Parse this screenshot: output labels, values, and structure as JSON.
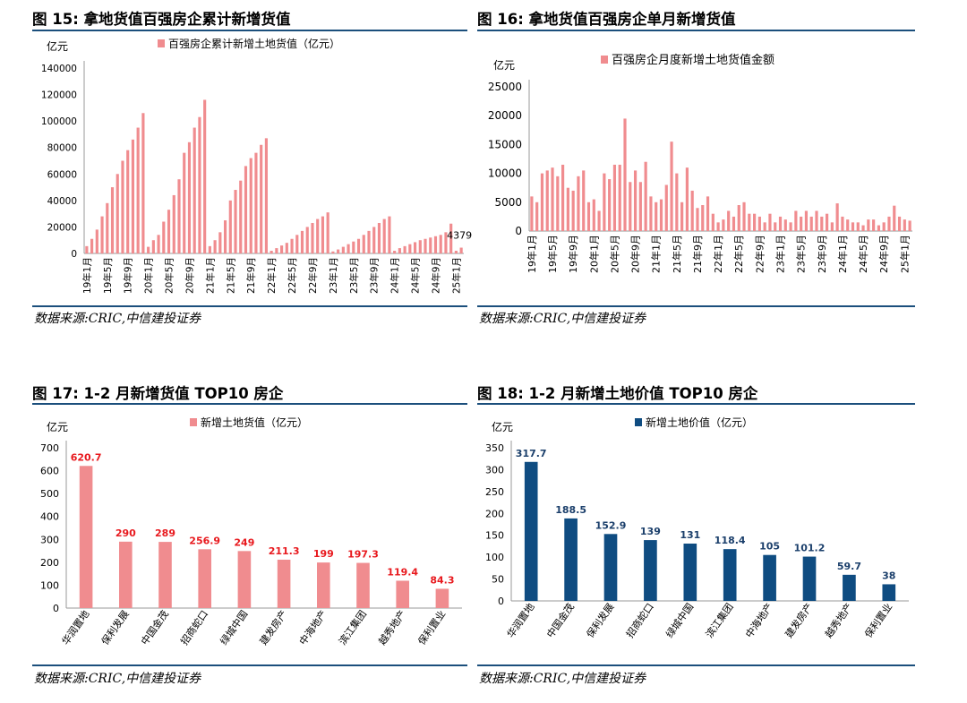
{
  "panels": [
    {
      "title": "图 15:  拿地货值百强房企累计新增货值",
      "source": "数据来源:CRIC,中信建投证券",
      "chart_data": {
        "type": "bar",
        "unit_label": "亿元",
        "legend": "百强房企累计新增土地货值（亿元）",
        "ylim": [
          0,
          140000
        ],
        "yticks": [
          0,
          20000,
          40000,
          60000,
          80000,
          100000,
          120000,
          140000
        ],
        "color": "#f08c8f",
        "categories": [
          "19年1月",
          "19年2月",
          "19年3月",
          "19年4月",
          "19年5月",
          "19年6月",
          "19年7月",
          "19年8月",
          "19年9月",
          "19年10月",
          "19年11月",
          "19年12月",
          "20年1月",
          "20年2月",
          "20年3月",
          "20年4月",
          "20年5月",
          "20年6月",
          "20年7月",
          "20年8月",
          "20年9月",
          "20年10月",
          "20年11月",
          "20年12月",
          "21年1月",
          "21年2月",
          "21年3月",
          "21年4月",
          "21年5月",
          "21年6月",
          "21年7月",
          "21年8月",
          "21年9月",
          "21年10月",
          "21年11月",
          "21年12月",
          "22年1月",
          "22年2月",
          "22年3月",
          "22年4月",
          "22年5月",
          "22年6月",
          "22年7月",
          "22年8月",
          "22年9月",
          "22年10月",
          "22年11月",
          "22年12月",
          "23年1月",
          "23年2月",
          "23年3月",
          "23年4月",
          "23年5月",
          "23年6月",
          "23年7月",
          "23年8月",
          "23年9月",
          "23年10月",
          "23年11月",
          "23年12月",
          "24年1月",
          "24年2月",
          "24年3月",
          "24年4月",
          "24年5月",
          "24年6月",
          "24年7月",
          "24年8月",
          "24年9月",
          "24年10月",
          "24年11月",
          "24年12月",
          "25年1月",
          "25年2月"
        ],
        "xtick_labels": [
          "19年1月",
          "19年5月",
          "19年9月",
          "20年1月",
          "20年5月",
          "20年9月",
          "21年1月",
          "21年5月",
          "21年9月",
          "22年1月",
          "22年5月",
          "22年9月",
          "23年1月",
          "23年5月",
          "23年9月",
          "24年1月",
          "24年5月",
          "24年9月",
          "25年1月"
        ],
        "values": [
          5500,
          11000,
          18000,
          28000,
          38000,
          50000,
          60000,
          70000,
          78000,
          86000,
          95000,
          106000,
          5000,
          10000,
          14000,
          24000,
          33000,
          44000,
          56000,
          76000,
          84000,
          95000,
          103000,
          116000,
          5500,
          10000,
          16000,
          25000,
          40000,
          48000,
          55000,
          66000,
          72000,
          76000,
          82000,
          87000,
          2000,
          4000,
          6000,
          8000,
          11000,
          14000,
          17000,
          20000,
          23000,
          26000,
          28000,
          31000,
          1500,
          3000,
          5000,
          7000,
          9000,
          11000,
          14000,
          17000,
          20000,
          23000,
          26000,
          28000,
          2000,
          4000,
          5500,
          7000,
          8500,
          10000,
          11000,
          12000,
          13000,
          14000,
          16000,
          22500,
          2000,
          4379
        ],
        "annotation": {
          "category_index": 73,
          "text": "4379"
        }
      }
    },
    {
      "title": "图 16:  拿地货值百强房企单月新增货值",
      "source": "数据来源:CRIC,中信建投证券",
      "chart_data": {
        "type": "bar",
        "unit_label": "亿元",
        "legend": "百强房企月度新增土地货值金额",
        "ylim": [
          0,
          25000
        ],
        "yticks": [
          0,
          5000,
          10000,
          15000,
          20000,
          25000
        ],
        "color": "#f08c8f",
        "categories": [
          "19年1月",
          "19年2月",
          "19年3月",
          "19年4月",
          "19年5月",
          "19年6月",
          "19年7月",
          "19年8月",
          "19年9月",
          "19年10月",
          "19年11月",
          "19年12月",
          "20年1月",
          "20年2月",
          "20年3月",
          "20年4月",
          "20年5月",
          "20年6月",
          "20年7月",
          "20年8月",
          "20年9月",
          "20年10月",
          "20年11月",
          "20年12月",
          "21年1月",
          "21年2月",
          "21年3月",
          "21年4月",
          "21年5月",
          "21年6月",
          "21年7月",
          "21年8月",
          "21年9月",
          "21年10月",
          "21年11月",
          "21年12月",
          "22年1月",
          "22年2月",
          "22年3月",
          "22年4月",
          "22年5月",
          "22年6月",
          "22年7月",
          "22年8月",
          "22年9月",
          "22年10月",
          "22年11月",
          "22年12月",
          "23年1月",
          "23年2月",
          "23年3月",
          "23年4月",
          "23年5月",
          "23年6月",
          "23年7月",
          "23年8月",
          "23年9月",
          "23年10月",
          "23年11月",
          "23年12月",
          "24年1月",
          "24年2月",
          "24年3月",
          "24年4月",
          "24年5月",
          "24年6月",
          "24年7月",
          "24年8月",
          "24年9月",
          "24年10月",
          "24年11月",
          "24年12月",
          "25年1月",
          "25年2月"
        ],
        "xtick_labels": [
          "19年1月",
          "19年5月",
          "19年9月",
          "20年1月",
          "20年5月",
          "20年9月",
          "21年1月",
          "21年5月",
          "21年9月",
          "22年1月",
          "22年5月",
          "22年9月",
          "23年1月",
          "23年5月",
          "23年9月",
          "24年1月",
          "24年5月",
          "24年9月",
          "25年1月"
        ],
        "values": [
          6000,
          5000,
          10000,
          10500,
          11000,
          9500,
          11500,
          7500,
          7000,
          9500,
          10500,
          5000,
          5500,
          3500,
          10000,
          9000,
          11500,
          11500,
          19500,
          8500,
          10500,
          8500,
          12000,
          6000,
          5000,
          5500,
          8000,
          15500,
          10000,
          5000,
          11000,
          7000,
          4000,
          4500,
          6000,
          3000,
          1500,
          2000,
          3500,
          2500,
          4500,
          5000,
          3000,
          3000,
          2500,
          1500,
          3000,
          1500,
          2500,
          2000,
          1500,
          3500,
          2500,
          3500,
          2500,
          3500,
          2500,
          3000,
          1500,
          4800,
          2500,
          2000,
          1500,
          1500,
          1000,
          2000,
          2000,
          1000,
          1500,
          2500,
          4400,
          2500,
          2000,
          1800
        ]
      }
    },
    {
      "title": "图 17:  1-2 月新增货值 TOP10 房企",
      "source": "数据来源:CRIC,中信建投证券",
      "chart_data": {
        "type": "bar",
        "unit_label": "亿元",
        "legend": "新增土地货值（亿元）",
        "ylim": [
          0,
          700
        ],
        "yticks": [
          0,
          100,
          200,
          300,
          400,
          500,
          600,
          700
        ],
        "color": "#f08c8f",
        "label_color": "#e8191e",
        "categories": [
          "华润置地",
          "保利发展",
          "中国金茂",
          "招商蛇口",
          "绿城中国",
          "建发房产",
          "中海地产",
          "滨江集团",
          "越秀地产",
          "保利置业"
        ],
        "values": [
          620.7,
          290,
          289,
          256.9,
          249,
          211.3,
          199,
          197.3,
          119.4,
          84.3
        ],
        "value_labels": [
          "620.7",
          "290",
          "289",
          "256.9",
          "249",
          "211.3",
          "199",
          "197.3",
          "119.4",
          "84.3"
        ]
      }
    },
    {
      "title": "图 18:  1-2 月新增土地价值 TOP10 房企",
      "source": "数据来源:CRIC,中信建投证券",
      "chart_data": {
        "type": "bar",
        "unit_label": "亿元",
        "legend": "新增土地价值（亿元）",
        "ylim": [
          0,
          350
        ],
        "yticks": [
          0,
          50,
          100,
          150,
          200,
          250,
          300,
          350
        ],
        "color": "#0f4c81",
        "label_color": "#1b3f6b",
        "categories": [
          "华润置地",
          "中国金茂",
          "保利发展",
          "招商蛇口",
          "绿城中国",
          "滨江集团",
          "中海地产",
          "建发房产",
          "越秀地产",
          "保利置业"
        ],
        "values": [
          317.7,
          188.5,
          152.9,
          139,
          131,
          118.4,
          105,
          101.2,
          59.7,
          38
        ],
        "value_labels": [
          "317.7",
          "188.5",
          "152.9",
          "139",
          "131",
          "118.4",
          "105",
          "101.2",
          "59.7",
          "38"
        ]
      }
    }
  ]
}
